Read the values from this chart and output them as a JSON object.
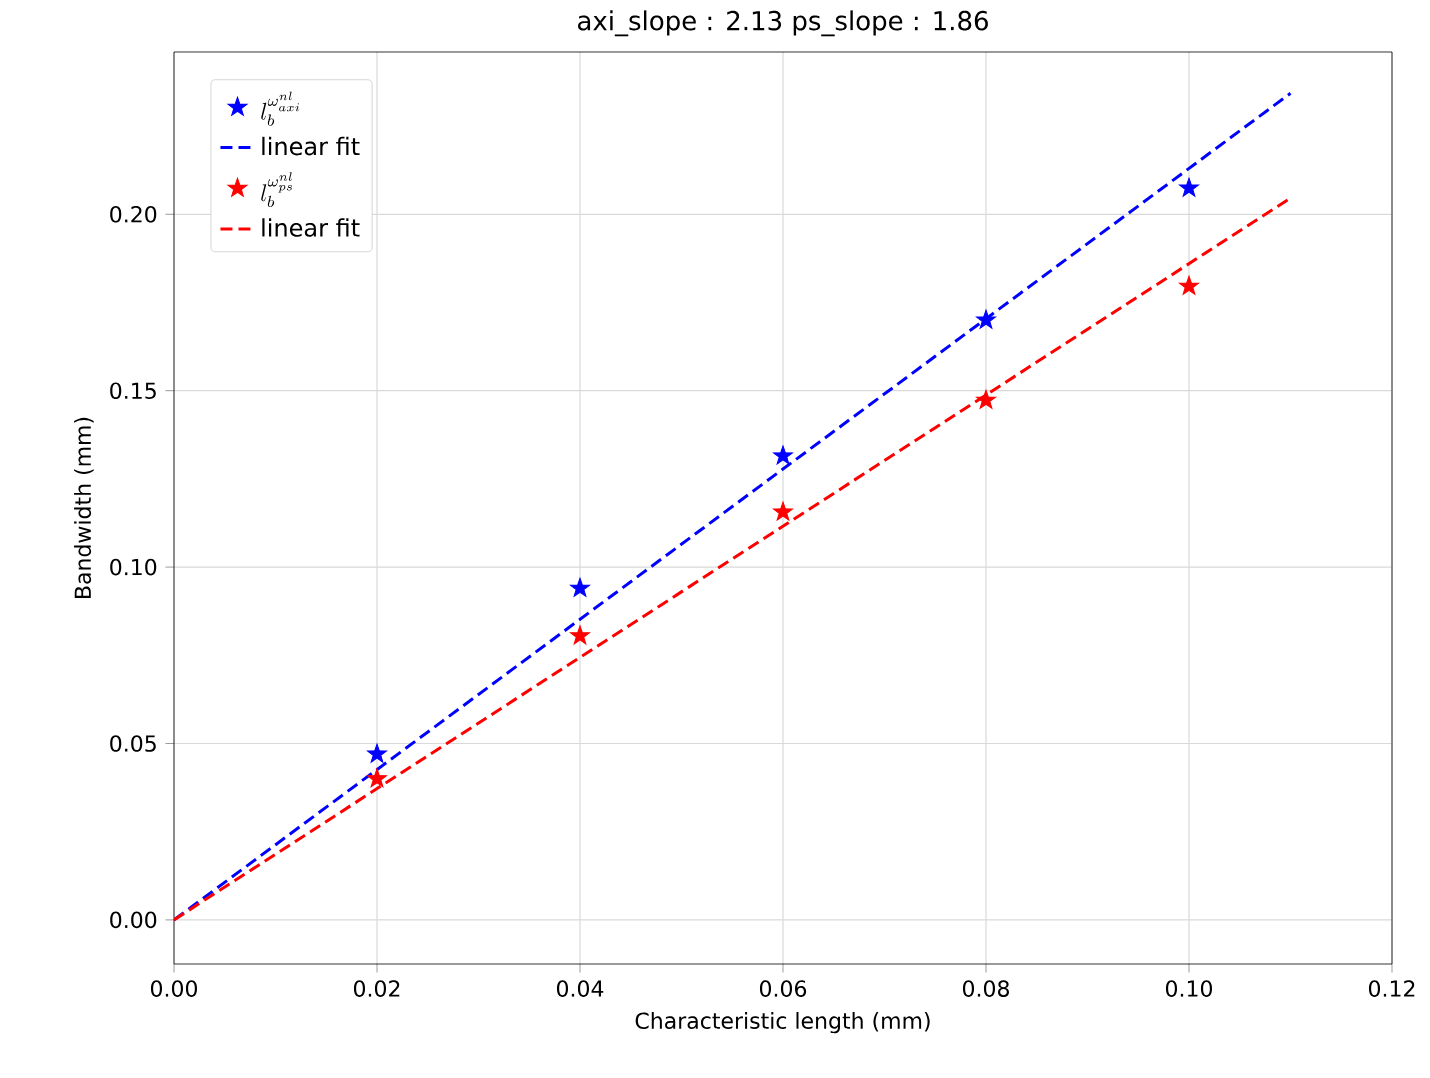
{
  "chart_data": {
    "type": "scatter",
    "title": "axi_slope : 2.13  ps_slope : 1.86",
    "xlabel": "Characteristic length (mm)",
    "ylabel": "Bandwidth (mm)",
    "xlim": [
      0,
      0.12
    ],
    "ylim": [
      -0.0125,
      0.246
    ],
    "xticks": [
      {
        "value": 0,
        "label": "0.00"
      },
      {
        "value": 0.02,
        "label": "0.02"
      },
      {
        "value": 0.04,
        "label": "0.04"
      },
      {
        "value": 0.06,
        "label": "0.06"
      },
      {
        "value": 0.08,
        "label": "0.08"
      },
      {
        "value": 0.1,
        "label": "0.10"
      },
      {
        "value": 0.12,
        "label": "0.12"
      }
    ],
    "yticks": [
      {
        "value": 0,
        "label": "0.00"
      },
      {
        "value": 0.05,
        "label": "0.05"
      },
      {
        "value": 0.1,
        "label": "0.10"
      },
      {
        "value": 0.15,
        "label": "0.15"
      },
      {
        "value": 0.2,
        "label": "0.20"
      }
    ],
    "grid": true,
    "legend": "top left",
    "series": [
      {
        "name": "l_b^{\\omega_{axi}^{nl}}",
        "marker": "star",
        "color": "#0000ff",
        "x": [
          0.02,
          0.04,
          0.06,
          0.08,
          0.1
        ],
        "values": [
          0.047,
          0.094,
          0.1315,
          0.17,
          0.2074
        ]
      },
      {
        "name": "linear fit",
        "type": "line",
        "marker": "none",
        "line_style": "dashed",
        "color": "#0000ff",
        "x": [
          0,
          0.11
        ],
        "values": [
          0,
          0.2343
        ]
      },
      {
        "name": "l_b^{\\omega_{ps}^{nl}}",
        "marker": "star",
        "color": "#ff0000",
        "x": [
          0.02,
          0.04,
          0.06,
          0.08,
          0.1
        ],
        "values": [
          0.04,
          0.0805,
          0.1156,
          0.1473,
          0.1796
        ]
      },
      {
        "name": "linear fit",
        "type": "line",
        "marker": "none",
        "line_style": "dashed",
        "color": "#ff0000",
        "x": [
          0,
          0.11
        ],
        "values": [
          0,
          0.2046
        ]
      }
    ]
  }
}
